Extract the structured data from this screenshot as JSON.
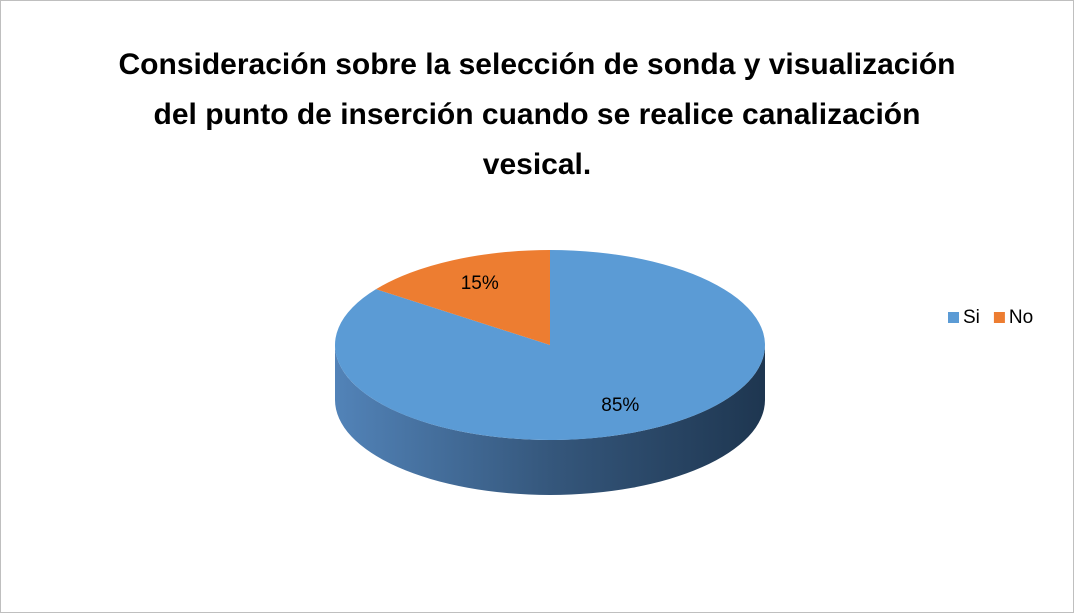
{
  "chart_data": {
    "type": "pie",
    "title": "Consideración sobre la selección de sonda y visualización del punto de inserción cuando se realice canalización vesical.",
    "categories": [
      "Si",
      "No"
    ],
    "values": [
      85,
      15
    ],
    "value_labels": [
      "85%",
      "15%"
    ],
    "colors": [
      "#5b9bd5",
      "#ed7d31"
    ],
    "legend": "right"
  }
}
